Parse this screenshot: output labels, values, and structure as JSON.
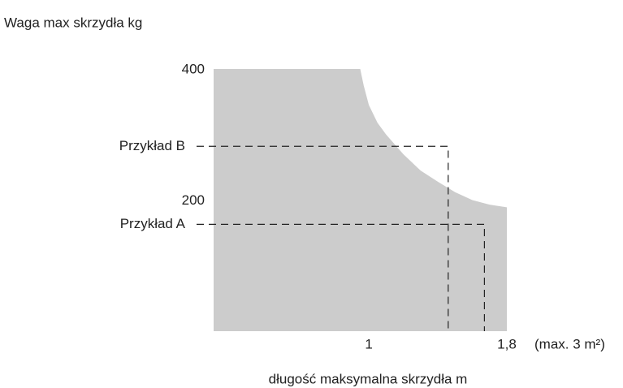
{
  "chart_data": {
    "type": "area",
    "y_label": "Waga max  skrzydła  kg",
    "x_label": "długość maksymalna skrzydła   m",
    "annotation": "(max. 3 m²)",
    "x": [
      0.1,
      0.95,
      0.97,
      1.0,
      1.05,
      1.1,
      1.2,
      1.3,
      1.4,
      1.5,
      1.6,
      1.7,
      1.8
    ],
    "values": [
      400,
      400,
      375,
      345,
      318,
      300,
      270,
      245,
      228,
      212,
      200,
      193,
      189
    ],
    "color": "#cccccc",
    "xlim": [
      0.1,
      1.8
    ],
    "ylim": [
      0,
      400
    ],
    "xticks": [
      1,
      {
        "value": 1.8,
        "label": "1,8"
      }
    ],
    "yticks": [
      200,
      400
    ],
    "examples": [
      {
        "label": "Przykład A",
        "x": 1.67,
        "y": 163
      },
      {
        "label": "Przykład B",
        "x": 1.46,
        "y": 282
      }
    ]
  }
}
